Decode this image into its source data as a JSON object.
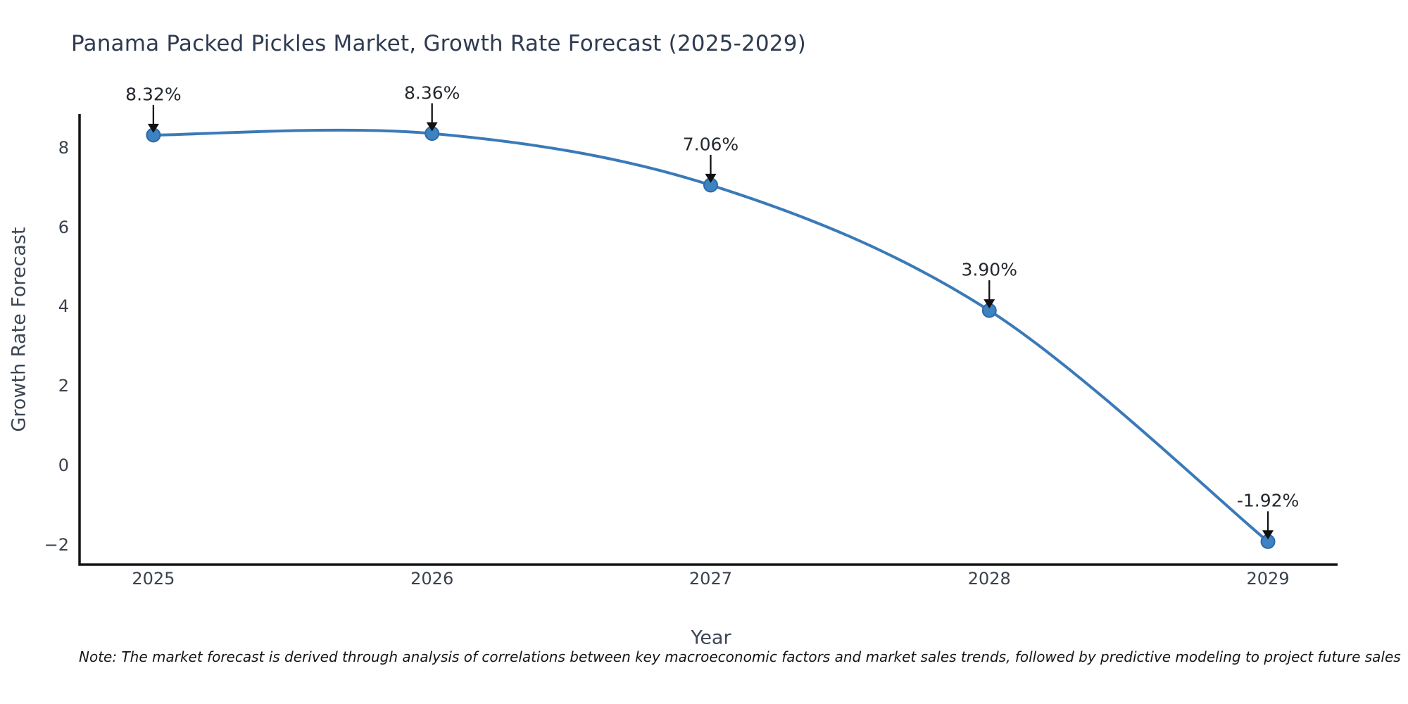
{
  "title": "Panama Packed Pickles Market, Growth Rate Forecast (2025-2029)",
  "note": "Note: The market forecast is derived through analysis of correlations between key macroeconomic factors and market sales trends, followed by predictive modeling to project future sales",
  "chart_data": {
    "type": "line",
    "title": "Panama Packed Pickles Market, Growth Rate Forecast (2025-2029)",
    "xlabel": "Year",
    "ylabel": "Growth Rate Forecast",
    "x": [
      2025,
      2026,
      2027,
      2028,
      2029
    ],
    "values": [
      8.32,
      8.36,
      7.06,
      3.9,
      -1.92
    ],
    "annotations": [
      "8.32%",
      "8.36%",
      "7.06%",
      "3.90%",
      "-1.92%"
    ],
    "yticks": {
      "values": [
        8,
        6,
        4,
        2,
        0,
        -2
      ],
      "labels": [
        "8",
        "6",
        "4",
        "2",
        "0",
        "−2"
      ]
    },
    "xticks": {
      "values": [
        2025,
        2026,
        2027,
        2028,
        2029
      ],
      "labels": [
        "2025",
        "2026",
        "2027",
        "2028",
        "2029"
      ]
    },
    "xlim": [
      2024.735,
      2029.25
    ],
    "ylim": [
      -2.5,
      8.85
    ],
    "grid": false,
    "legend": null,
    "colors": {
      "line": "#3a7ab8",
      "marker_fill": "#3d82c2",
      "marker_edge": "#2e6aa3",
      "arrow": "#111111",
      "axis": "#141414",
      "title_text": "#2e3b50",
      "tick_text": "#39424e",
      "annotation_text": "#23282e"
    }
  }
}
